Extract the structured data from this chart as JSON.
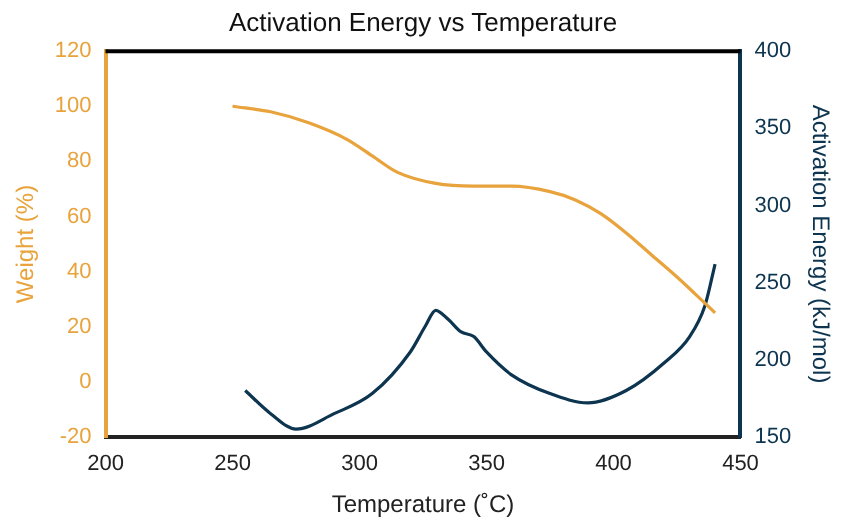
{
  "chart_data": {
    "type": "line",
    "title": "Activation Energy vs Temperature",
    "xlabel": "Temperature (˚C)",
    "ylabel": "Weight (%)",
    "y2label": "Activation Energy (kJ/mol)",
    "xlim": [
      200,
      450
    ],
    "xticks": [
      200,
      250,
      300,
      350,
      400,
      450
    ],
    "ylim": [
      -20,
      120
    ],
    "yticks": [
      -20,
      0,
      20,
      40,
      60,
      80,
      100,
      120
    ],
    "y2lim": [
      150,
      400
    ],
    "y2ticks": [
      150,
      200,
      250,
      300,
      350,
      400
    ],
    "grid": false,
    "legend": false,
    "marker": "none",
    "series": [
      {
        "color": "#e8a33c",
        "x": [
          250,
          265,
          280,
          295,
          305,
          315,
          330,
          345,
          360,
          375,
          385,
          395,
          405,
          415,
          425,
          432,
          440
        ],
        "values": [
          100,
          98,
          94,
          88,
          82,
          76,
          72,
          71,
          71,
          69,
          66,
          61,
          54,
          46,
          38,
          32,
          25
        ]
      },
      {
        "color": "#0d3550",
        "axis": "y2",
        "x": [
          255,
          265,
          275,
          290,
          305,
          320,
          326,
          330,
          335,
          340,
          345,
          350,
          360,
          375,
          390,
          405,
          420,
          430,
          436,
          440
        ],
        "values": [
          180,
          165,
          155,
          165,
          178,
          205,
          222,
          232,
          226,
          218,
          215,
          205,
          190,
          178,
          172,
          180,
          198,
          215,
          235,
          262
        ]
      }
    ]
  }
}
